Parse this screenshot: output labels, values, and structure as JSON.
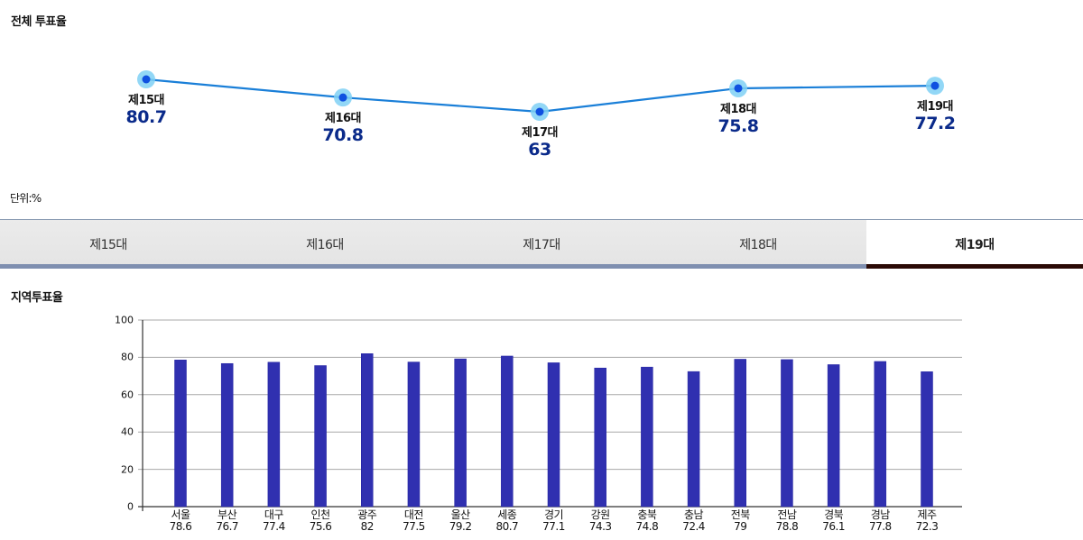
{
  "sections": {
    "total_title": "전체 투표율",
    "unit_label": "단위:%",
    "regional_title": "지역투표율"
  },
  "tabs": [
    {
      "label": "제15대",
      "active": false
    },
    {
      "label": "제16대",
      "active": false
    },
    {
      "label": "제17대",
      "active": false
    },
    {
      "label": "제18대",
      "active": false
    },
    {
      "label": "제19대",
      "active": true
    }
  ],
  "colors": {
    "line": "#1a7fd8",
    "point_outer": "#7fd0f5",
    "point_inner": "#1050e0",
    "value_text": "#0a2a8a",
    "bar": "#3030b0",
    "tab_active_bar": "#2b0a05",
    "tab_inactive_bar": "#7f8fb0"
  },
  "chart_data": [
    {
      "type": "line",
      "title": "전체 투표율",
      "unit": "%",
      "categories": [
        "제15대",
        "제16대",
        "제17대",
        "제18대",
        "제19대"
      ],
      "values": [
        80.7,
        70.8,
        63,
        75.8,
        77.2
      ],
      "point_labels": [
        {
          "name": "제15대",
          "value": "80.7"
        },
        {
          "name": "제16대",
          "value": "70.8"
        },
        {
          "name": "제17대",
          "value": "63"
        },
        {
          "name": "제18대",
          "value": "75.8"
        },
        {
          "name": "제19대",
          "value": "77.2"
        }
      ],
      "grid": false,
      "legend": "none"
    },
    {
      "type": "bar",
      "title": "지역투표율",
      "selected_election": "제19대",
      "categories": [
        "서울",
        "부산",
        "대구",
        "인천",
        "광주",
        "대전",
        "울산",
        "세종",
        "경기",
        "강원",
        "충북",
        "충남",
        "전북",
        "전남",
        "경북",
        "경남",
        "제주"
      ],
      "values": [
        78.6,
        76.7,
        77.4,
        75.6,
        82,
        77.5,
        79.2,
        80.7,
        77.1,
        74.3,
        74.8,
        72.4,
        79,
        78.8,
        76.1,
        77.8,
        72.3
      ],
      "value_labels": [
        "78.6",
        "76.7",
        "77.4",
        "75.6",
        "82",
        "77.5",
        "79.2",
        "80.7",
        "77.1",
        "74.3",
        "74.8",
        "72.4",
        "79",
        "78.8",
        "76.1",
        "77.8",
        "72.3"
      ],
      "xlabel": "",
      "ylabel": "",
      "ylim": [
        0,
        100
      ],
      "yticks": [
        "0",
        "20",
        "40",
        "60",
        "80",
        "100"
      ],
      "grid": true,
      "legend": "none"
    }
  ]
}
